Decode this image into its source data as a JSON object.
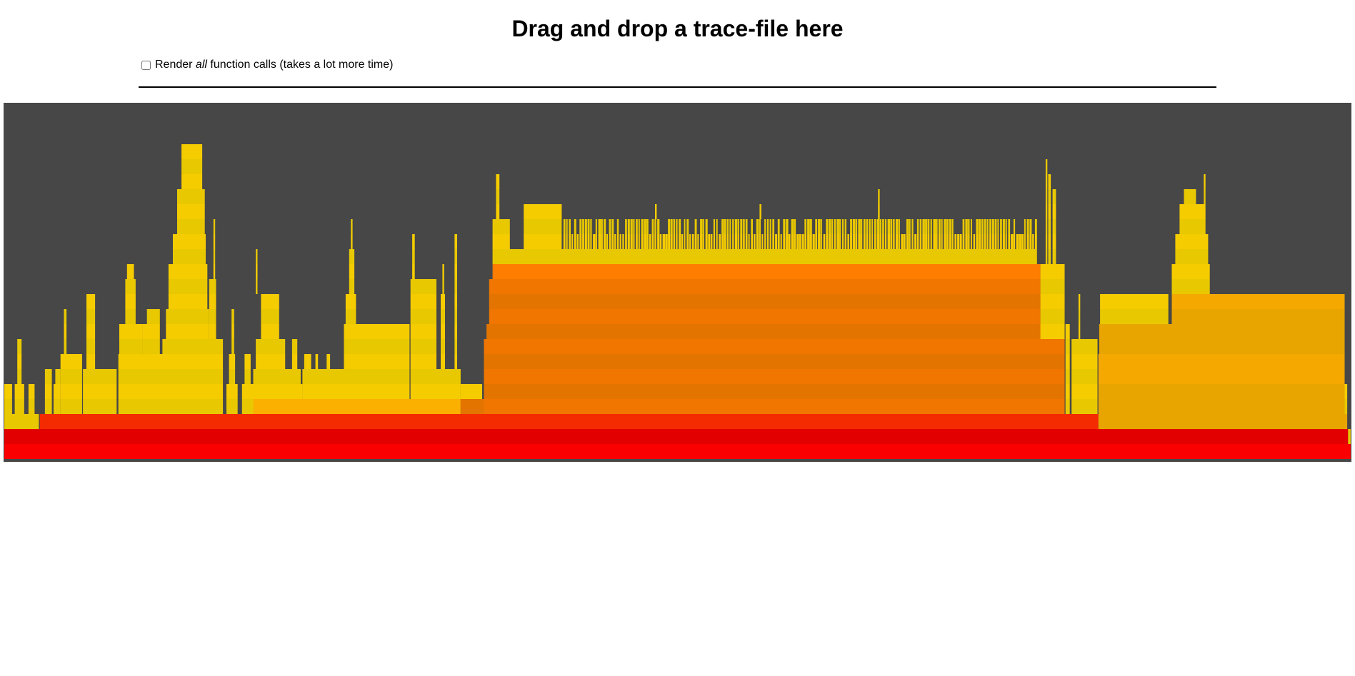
{
  "header": {
    "title": "Drag and drop a trace-file here"
  },
  "options": {
    "render_all": {
      "label_before": "Render ",
      "label_emphasis": "all",
      "label_after": " function calls (takes a lot more time)",
      "checked": false
    }
  },
  "flamegraph": {
    "background": "#474747",
    "colors": {
      "root": "#fa0000",
      "level1": "#e20000",
      "level2": "#f42a00",
      "orange": "#f07600",
      "orange_dark": "#e47400",
      "orange_light": "#ff7d00",
      "amber": "#fbb000",
      "gold": "#e8a500",
      "gold_light": "#f5a800",
      "yellow": "#f5cc00",
      "yellow_alt": "#e8c800"
    }
  }
}
